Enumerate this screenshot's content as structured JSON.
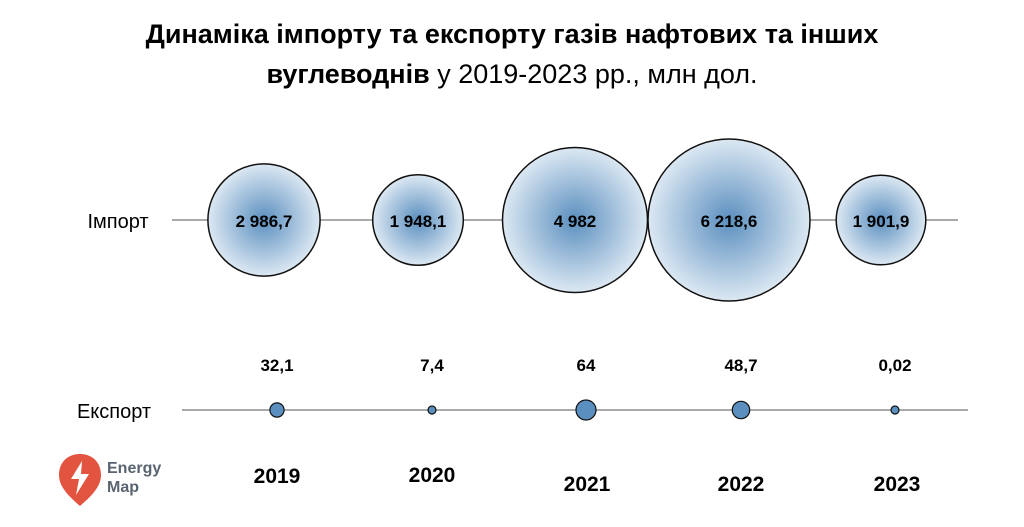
{
  "title": {
    "bold_line1": "Динаміка імпорту та експорту газів нафтових та інших",
    "bold_line2": "вуглеводнів",
    "normal_line2": "у 2019-2023 рр., млн дол."
  },
  "chart_data": {
    "type": "scatter",
    "categories": [
      "2019",
      "2020",
      "2021",
      "2022",
      "2023"
    ],
    "series": [
      {
        "name": "Імпорт",
        "values": [
          2986.7,
          1948.1,
          4982,
          6218.6,
          1901.9
        ],
        "labels": [
          "2 986,7",
          "1 948,1",
          "4 982",
          "6 218,6",
          "1 901,9"
        ]
      },
      {
        "name": "Експорт",
        "values": [
          32.1,
          7.4,
          64,
          48.7,
          0.02
        ],
        "labels": [
          "32,1",
          "7,4",
          "64",
          "48,7",
          "0,02"
        ]
      }
    ],
    "marker_color": "#5b8fbf",
    "marker_highlight": "#e9f1f8",
    "marker_stroke": "#111111"
  },
  "logo": {
    "line1": "Energy",
    "line2": "Map",
    "color": "#e2543f"
  }
}
